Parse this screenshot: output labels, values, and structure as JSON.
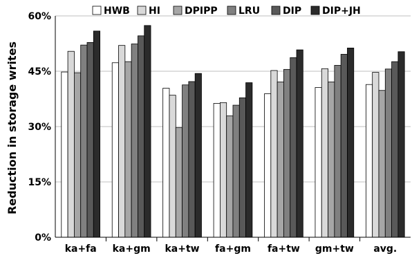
{
  "chart_data": {
    "type": "bar",
    "title": "",
    "xlabel": "",
    "ylabel": "Reduction in storage writes",
    "ylim": [
      0,
      60
    ],
    "yticks": [
      0,
      15,
      30,
      45,
      60
    ],
    "ytick_labels": [
      "0%",
      "15%",
      "30%",
      "45%",
      "60%"
    ],
    "grid": true,
    "legend_position": "top",
    "categories": [
      "ka+fa",
      "ka+gm",
      "ka+tw",
      "fa+gm",
      "fa+tw",
      "gm+tw",
      "avg."
    ],
    "series": [
      {
        "name": "HWB",
        "color": "#ffffff",
        "values": [
          44.8,
          47.3,
          40.4,
          36.3,
          38.9,
          40.6,
          41.4
        ]
      },
      {
        "name": "HI",
        "color": "#d9d9d9",
        "values": [
          50.4,
          52.0,
          38.5,
          36.5,
          45.2,
          45.7,
          44.7
        ]
      },
      {
        "name": "DPIPP",
        "color": "#a6a6a6",
        "values": [
          44.6,
          47.6,
          29.7,
          32.9,
          42.1,
          42.1,
          39.8
        ]
      },
      {
        "name": "LRU",
        "color": "#808080",
        "values": [
          52.1,
          52.4,
          41.3,
          35.8,
          45.5,
          46.6,
          45.6
        ]
      },
      {
        "name": "DIP",
        "color": "#595959",
        "values": [
          52.8,
          54.6,
          42.2,
          37.8,
          48.7,
          49.6,
          47.6
        ]
      },
      {
        "name": "DIP+JH",
        "color": "#2b2b2b",
        "values": [
          55.9,
          57.4,
          44.4,
          41.9,
          50.8,
          51.3,
          50.3
        ]
      }
    ]
  }
}
